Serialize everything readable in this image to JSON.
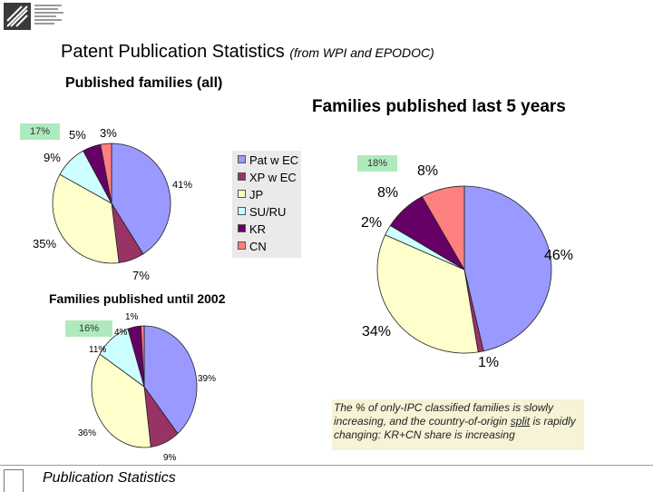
{
  "title": "Patent Publication Statistics",
  "subtitle": "(from WPI and EPODOC)",
  "footer": "Publication Statistics",
  "note": {
    "pre": "The % of only-IPC classified families is slowly increasing, and the country-of-origin ",
    "underlined": "split",
    "post": " is rapidly changing: KR+CN share is increasing"
  },
  "legend": [
    {
      "label": "Pat w EC",
      "color": "#9999ff"
    },
    {
      "label": "XP w EC",
      "color": "#993366"
    },
    {
      "label": "JP",
      "color": "#ffffcc"
    },
    {
      "label": "SU/RU",
      "color": "#ccffff"
    },
    {
      "label": "KR",
      "color": "#660066"
    },
    {
      "label": "CN",
      "color": "#ff8080"
    }
  ],
  "chart_data": [
    {
      "type": "pie",
      "title": "Published families (all)",
      "categories": [
        "Pat w EC",
        "XP w EC",
        "JP",
        "SU/RU",
        "KR",
        "CN"
      ],
      "values": [
        41,
        7,
        35,
        9,
        5,
        3
      ],
      "value_labels": [
        "41%",
        "7%",
        "35%",
        "9%",
        "5%",
        "3%"
      ],
      "highlight_label": "17%",
      "legend_position": "right"
    },
    {
      "type": "pie",
      "title": "Families published last 5 years",
      "categories": [
        "Pat w EC",
        "XP w EC",
        "JP",
        "SU/RU",
        "KR",
        "CN"
      ],
      "values": [
        46,
        1,
        34,
        2,
        8,
        8
      ],
      "value_labels": [
        "46%",
        "1%",
        "34%",
        "2%",
        "8%",
        "8%"
      ],
      "highlight_label": "18%"
    },
    {
      "type": "pie",
      "title": "Families published until 2002",
      "categories": [
        "Pat w EC",
        "XP w EC",
        "JP",
        "SU/RU",
        "KR",
        "CN"
      ],
      "values": [
        39,
        9,
        36,
        11,
        4,
        1
      ],
      "value_labels": [
        "39%",
        "9%",
        "36%",
        "11%",
        "4%",
        "1%"
      ],
      "highlight_label": "16%"
    }
  ]
}
